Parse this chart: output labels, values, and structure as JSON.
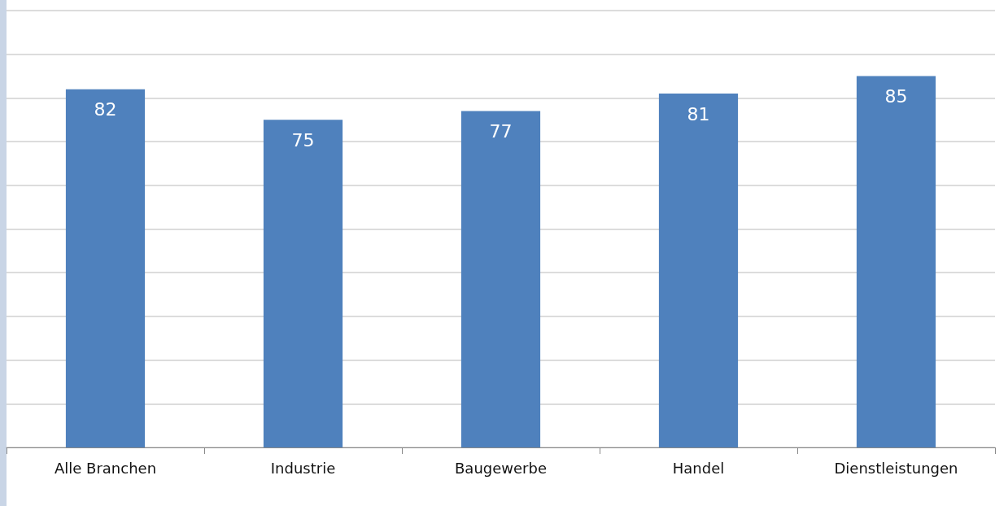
{
  "chart_data": {
    "type": "bar",
    "categories": [
      "Alle Branchen",
      "Industrie",
      "Baugewerbe",
      "Handel",
      "Dienstleistungen"
    ],
    "values": [
      82,
      75,
      77,
      81,
      85
    ],
    "color": "#4f81bd",
    "ylim": [
      0,
      100
    ],
    "yticks": [
      {
        "value": 0,
        "label": null
      },
      {
        "value": 10,
        "label": null
      },
      {
        "value": 20,
        "label": null
      },
      {
        "value": 30,
        "label": null
      },
      {
        "value": 40,
        "label": null
      },
      {
        "value": 50,
        "label": null
      },
      {
        "value": 60,
        "label": null
      },
      {
        "value": 70,
        "label": null
      },
      {
        "value": 80,
        "label": null
      },
      {
        "value": 90,
        "label": null
      },
      {
        "value": 100,
        "label": null
      }
    ],
    "grid": true,
    "data_labels": true,
    "tick_labels": "x"
  }
}
